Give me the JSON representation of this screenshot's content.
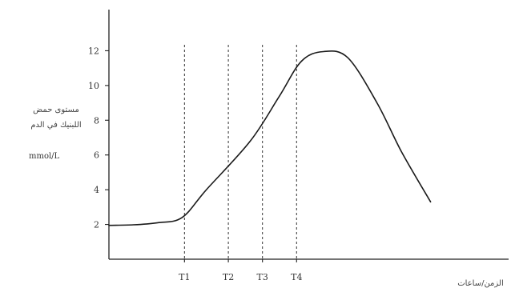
{
  "chart_data": {
    "type": "line",
    "ylabel_lines": [
      "مستوى حمض",
      "اللبنيك في الدم"
    ],
    "yunit": "mmol/L",
    "xlabel": "الزمن/ساعات",
    "y_ticks": [
      "2",
      "4",
      "6",
      "8",
      "10",
      "12"
    ],
    "ylim": [
      0,
      14
    ],
    "markers": [
      "T1",
      "T2",
      "T3",
      "T4"
    ],
    "series": [
      {
        "points": [
          {
            "x": 0,
            "y": 1.95
          },
          {
            "x": 0.5,
            "y": 1.98
          },
          {
            "x": 1.0,
            "y": 2.1
          },
          {
            "x": 1.5,
            "y": 2.4
          },
          {
            "x": 2.0,
            "y": 4.0
          },
          {
            "x": 2.9,
            "y": 6.8
          },
          {
            "x": 3.5,
            "y": 9.4
          },
          {
            "x": 3.95,
            "y": 11.4
          },
          {
            "x": 4.4,
            "y": 11.95
          },
          {
            "x": 4.9,
            "y": 11.6
          },
          {
            "x": 5.5,
            "y": 9.0
          },
          {
            "x": 6.0,
            "y": 6.2
          },
          {
            "x": 6.6,
            "y": 3.3
          }
        ]
      }
    ],
    "marker_x": [
      1.55,
      2.45,
      3.15,
      3.85
    ],
    "xlim": [
      0,
      8.2
    ]
  }
}
